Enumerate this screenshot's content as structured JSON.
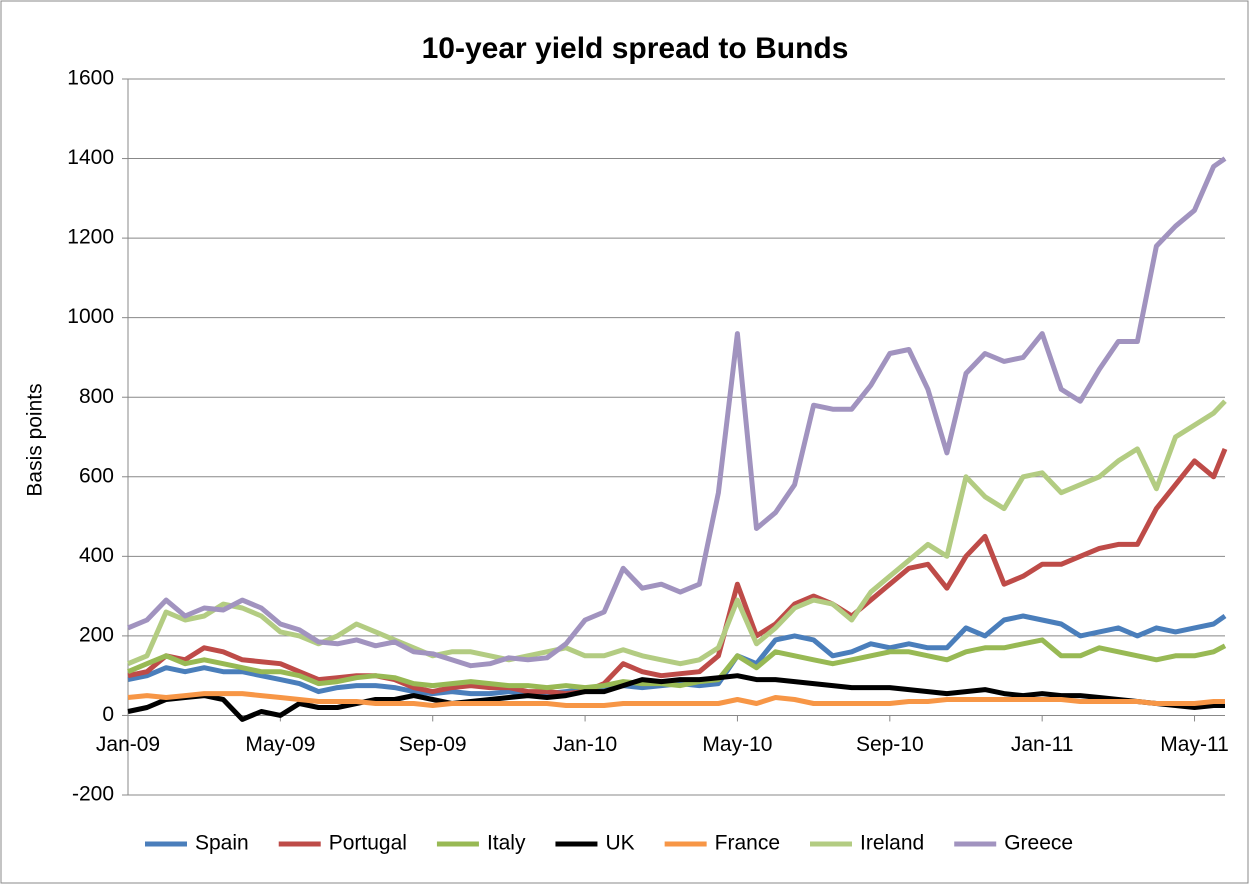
{
  "chart_data": {
    "type": "line",
    "title": "10-year yield spread to Bunds",
    "y_label": "Basis points",
    "x": [
      0,
      0.5,
      1,
      1.5,
      2,
      2.5,
      3,
      3.5,
      4,
      4.5,
      5,
      5.5,
      6,
      6.5,
      7,
      7.5,
      8,
      8.5,
      9,
      9.5,
      10,
      10.5,
      11,
      11.5,
      12,
      12.5,
      13,
      13.5,
      14,
      14.5,
      15,
      15.5,
      16,
      16.5,
      17,
      17.5,
      18,
      18.5,
      19,
      19.5,
      20,
      20.5,
      21,
      21.5,
      22,
      22.5,
      23,
      23.5,
      24,
      24.5,
      25,
      25.5,
      26,
      26.5,
      27,
      27.5,
      28,
      28.5,
      28.8
    ],
    "xlim": [
      0,
      28.8
    ],
    "xticks": [
      {
        "value": 0,
        "label": "Jan-09"
      },
      {
        "value": 4,
        "label": "May-09"
      },
      {
        "value": 8,
        "label": "Sep-09"
      },
      {
        "value": 12,
        "label": "Jan-10"
      },
      {
        "value": 16,
        "label": "May-10"
      },
      {
        "value": 20,
        "label": "Sep-10"
      },
      {
        "value": 24,
        "label": "Jan-11"
      },
      {
        "value": 28,
        "label": "May-11"
      }
    ],
    "ylim": [
      -200,
      1600
    ],
    "yticks": [
      -200,
      0,
      200,
      400,
      600,
      800,
      1000,
      1200,
      1400,
      1600
    ],
    "grid": true,
    "legend": "bottom",
    "series": [
      {
        "name": "Spain",
        "color": "#4a7ebb",
        "values": [
          90,
          100,
          120,
          110,
          120,
          110,
          110,
          100,
          90,
          80,
          60,
          70,
          75,
          75,
          70,
          60,
          55,
          60,
          55,
          55,
          60,
          55,
          55,
          60,
          65,
          65,
          75,
          70,
          75,
          80,
          75,
          80,
          150,
          130,
          190,
          200,
          190,
          150,
          160,
          180,
          170,
          180,
          170,
          170,
          220,
          200,
          240,
          250,
          240,
          230,
          200,
          210,
          220,
          200,
          220,
          210,
          220,
          230,
          250
        ]
      },
      {
        "name": "Portugal",
        "color": "#be4b48",
        "values": [
          100,
          110,
          150,
          140,
          170,
          160,
          140,
          135,
          130,
          110,
          90,
          95,
          100,
          100,
          90,
          70,
          60,
          70,
          75,
          70,
          70,
          60,
          60,
          55,
          60,
          80,
          130,
          110,
          100,
          105,
          110,
          150,
          330,
          200,
          230,
          280,
          300,
          280,
          250,
          290,
          330,
          370,
          380,
          320,
          400,
          450,
          330,
          350,
          380,
          380,
          400,
          420,
          430,
          430,
          520,
          580,
          640,
          600,
          670
        ]
      },
      {
        "name": "Italy",
        "color": "#98b954",
        "values": [
          110,
          130,
          150,
          130,
          140,
          130,
          120,
          110,
          110,
          100,
          80,
          85,
          95,
          100,
          95,
          80,
          75,
          80,
          85,
          80,
          75,
          75,
          70,
          75,
          70,
          75,
          85,
          80,
          80,
          75,
          85,
          90,
          150,
          120,
          160,
          150,
          140,
          130,
          140,
          150,
          160,
          160,
          150,
          140,
          160,
          170,
          170,
          180,
          190,
          150,
          150,
          170,
          160,
          150,
          140,
          150,
          150,
          160,
          175
        ]
      },
      {
        "name": "UK",
        "color": "#000000",
        "values": [
          10,
          20,
          40,
          45,
          50,
          40,
          -10,
          10,
          0,
          30,
          20,
          20,
          30,
          40,
          40,
          50,
          40,
          30,
          35,
          40,
          45,
          50,
          45,
          50,
          60,
          60,
          75,
          90,
          85,
          90,
          90,
          95,
          100,
          90,
          90,
          85,
          80,
          75,
          70,
          70,
          70,
          65,
          60,
          55,
          60,
          65,
          55,
          50,
          55,
          50,
          50,
          45,
          40,
          35,
          30,
          25,
          20,
          25,
          25
        ]
      },
      {
        "name": "France",
        "color": "#f79646",
        "values": [
          45,
          50,
          45,
          50,
          55,
          55,
          55,
          50,
          45,
          40,
          35,
          35,
          35,
          30,
          30,
          30,
          25,
          30,
          30,
          30,
          30,
          30,
          30,
          25,
          25,
          25,
          30,
          30,
          30,
          30,
          30,
          30,
          40,
          30,
          45,
          40,
          30,
          30,
          30,
          30,
          30,
          35,
          35,
          40,
          40,
          40,
          40,
          40,
          40,
          40,
          35,
          35,
          35,
          35,
          30,
          30,
          30,
          35,
          35
        ]
      },
      {
        "name": "Ireland",
        "color": "#b3cc82",
        "values": [
          130,
          150,
          260,
          240,
          250,
          280,
          270,
          250,
          210,
          200,
          180,
          200,
          230,
          210,
          190,
          170,
          150,
          160,
          160,
          150,
          140,
          150,
          160,
          170,
          150,
          150,
          165,
          150,
          140,
          130,
          140,
          170,
          290,
          180,
          220,
          270,
          290,
          280,
          240,
          310,
          350,
          390,
          430,
          400,
          600,
          550,
          520,
          600,
          610,
          560,
          580,
          600,
          640,
          670,
          570,
          700,
          730,
          760,
          790
        ]
      },
      {
        "name": "Greece",
        "color": "#a193bf",
        "values": [
          220,
          240,
          290,
          250,
          270,
          265,
          290,
          270,
          230,
          215,
          185,
          180,
          190,
          175,
          185,
          160,
          155,
          140,
          125,
          130,
          145,
          140,
          145,
          180,
          240,
          260,
          370,
          320,
          330,
          310,
          330,
          560,
          960,
          470,
          510,
          580,
          780,
          770,
          770,
          830,
          910,
          920,
          820,
          660,
          860,
          910,
          890,
          900,
          960,
          820,
          790,
          870,
          940,
          940,
          1180,
          1230,
          1270,
          1380,
          1400
        ]
      }
    ]
  }
}
